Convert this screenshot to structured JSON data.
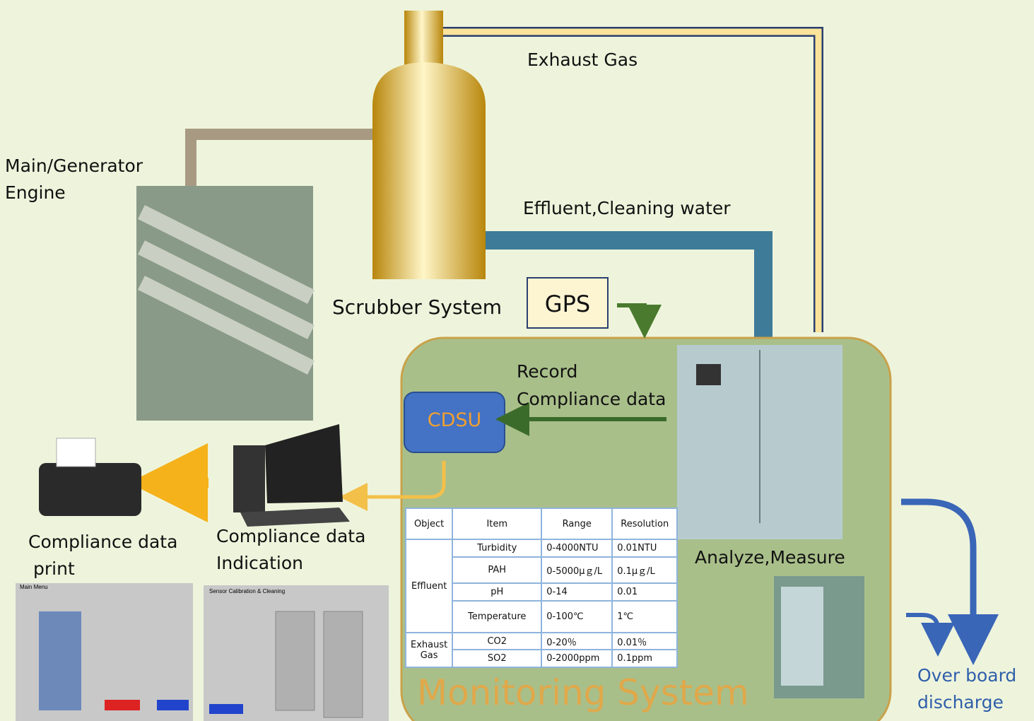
{
  "labels": {
    "exhaust_gas": "Exhaust Gas",
    "engine": [
      "Main/Generator",
      "Engine"
    ],
    "effluent": "Effluent,Cleaning water",
    "scrubber": "Scrubber System",
    "gps": "GPS",
    "record": [
      "Record",
      "Compliance data"
    ],
    "cdsu": "CDSU",
    "analyze": "Analyze,Measure",
    "print": [
      "Compliance data",
      "print"
    ],
    "indication": [
      "Compliance data",
      "Indication"
    ],
    "discharge": [
      "Over board",
      "discharge"
    ],
    "monitoring": "Monitoring System"
  },
  "screens": [
    "Main Menu",
    "Sensor Calibration & Cleaning"
  ],
  "table": {
    "header": [
      "Object",
      "Item",
      "Range",
      "Resolution"
    ],
    "groups": [
      {
        "object": "Effluent",
        "rows": [
          [
            "Turbidity",
            "0-4000NTU",
            "0.01NTU"
          ],
          [
            "PAH",
            "0-5000μｇ/L",
            "0.1μｇ/L"
          ],
          [
            "pH",
            "0-14",
            "0.01"
          ],
          [
            "Temperature",
            "0-100℃",
            "1℃"
          ]
        ]
      },
      {
        "object": "Exhaust Gas",
        "rows": [
          [
            "CO2",
            "0-20％",
            "0.01％"
          ],
          [
            "SO2",
            "0-2000ppm",
            "0.1ppm"
          ]
        ]
      }
    ]
  }
}
